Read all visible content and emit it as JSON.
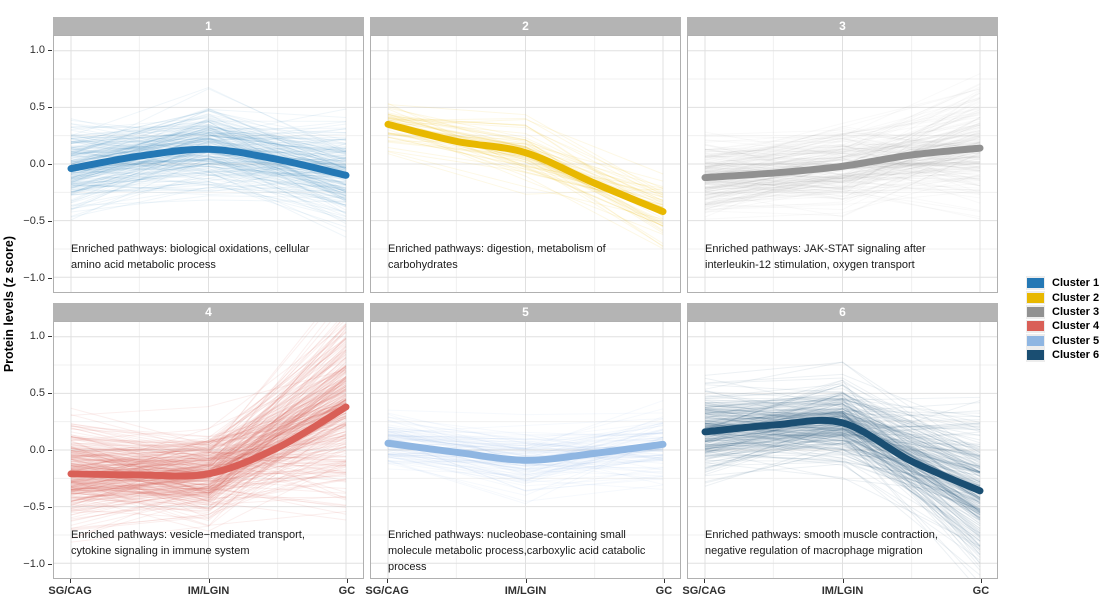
{
  "figure": {
    "y_axis_title": "Protein levels (z score)",
    "y_tick_labels": [
      "1.0",
      "0.5",
      "0.0",
      "−0.5",
      "−1.0"
    ],
    "y_tick_values": [
      1.0,
      0.5,
      0.0,
      -0.5,
      -1.0
    ],
    "x_tick_labels": [
      "SG/CAG",
      "IM/LGIN",
      "GC"
    ],
    "colors": {
      "strip_bg": "#b4b4b4",
      "strip_text": "#ffffff",
      "panel_border": "#b0b0b0",
      "grid_major": "#e0e0e0",
      "grid_minor": "#f0f0f0",
      "axis_text": "#303030"
    }
  },
  "legend": {
    "items": [
      {
        "label": "Cluster 1",
        "color": "#2478b5"
      },
      {
        "label": "Cluster 2",
        "color": "#e8b800"
      },
      {
        "label": "Cluster 3",
        "color": "#919191"
      },
      {
        "label": "Cluster 4",
        "color": "#d95f57"
      },
      {
        "label": "Cluster 5",
        "color": "#8fb6e2"
      },
      {
        "label": "Cluster 6",
        "color": "#1a4e72"
      }
    ]
  },
  "chart_data": {
    "type": "line",
    "x_categories": [
      "SG/CAG",
      "IM/LGIN",
      "GC"
    ],
    "ylabel": "Protein levels (z score)",
    "ylim": [
      -1.13,
      1.13
    ],
    "grid": true,
    "legend_position": "right",
    "facets": [
      {
        "cluster": "1",
        "color": "#2478b5",
        "trend_at_x": [
          -0.04,
          0.13,
          -0.1
        ],
        "trend_smooth": [
          -0.04,
          0.07,
          0.13,
          0.04,
          -0.1
        ],
        "spread_sd": [
          0.17,
          0.2,
          0.22
        ],
        "n_member_lines": 220,
        "line_opacity": 0.065,
        "annotation": "Enriched pathways: biological oxidations, cellular\namino acid metabolic process"
      },
      {
        "cluster": "2",
        "color": "#e8b800",
        "trend_at_x": [
          0.35,
          0.1,
          -0.42
        ],
        "trend_smooth": [
          0.35,
          0.2,
          0.1,
          -0.17,
          -0.42
        ],
        "spread_sd": [
          0.1,
          0.13,
          0.17
        ],
        "n_member_lines": 65,
        "line_opacity": 0.1,
        "annotation": "Enriched pathways: digestion, metabolism of\ncarbohydrates"
      },
      {
        "cluster": "3",
        "color": "#919191",
        "trend_at_x": [
          -0.12,
          -0.02,
          0.14
        ],
        "trend_smooth": [
          -0.12,
          -0.08,
          -0.02,
          0.08,
          0.14
        ],
        "spread_sd": [
          0.15,
          0.17,
          0.26
        ],
        "n_member_lines": 200,
        "line_opacity": 0.05,
        "annotation": "Enriched pathways: JAK-STAT signaling after\ninterleukin-12 stimulation, oxygen transport"
      },
      {
        "cluster": "4",
        "color": "#d95f57",
        "trend_at_x": [
          -0.21,
          -0.21,
          0.38
        ],
        "trend_smooth": [
          -0.21,
          -0.22,
          -0.21,
          0.02,
          0.38
        ],
        "spread_sd": [
          0.2,
          0.2,
          0.4
        ],
        "n_member_lines": 320,
        "line_opacity": 0.1,
        "annotation": "Enriched pathways: vesicle−mediated transport,\ncytokine signaling in immune system"
      },
      {
        "cluster": "5",
        "color": "#8fb6e2",
        "trend_at_x": [
          0.06,
          -0.09,
          0.05
        ],
        "trend_smooth": [
          0.06,
          -0.02,
          -0.09,
          -0.03,
          0.05
        ],
        "spread_sd": [
          0.12,
          0.14,
          0.16
        ],
        "n_member_lines": 95,
        "line_opacity": 0.08,
        "annotation": "Enriched pathways: nucleobase-containing small\nmolecule metabolic process,carboxylic acid catabolic\nprocess"
      },
      {
        "cluster": "6",
        "color": "#1a4e72",
        "trend_at_x": [
          0.16,
          0.24,
          -0.36
        ],
        "trend_smooth": [
          0.16,
          0.22,
          0.24,
          -0.1,
          -0.36
        ],
        "spread_sd": [
          0.18,
          0.17,
          0.32
        ],
        "n_member_lines": 280,
        "line_opacity": 0.08,
        "annotation": "Enriched pathways: smooth muscle contraction,\nnegative regulation of macrophage migration"
      }
    ]
  }
}
